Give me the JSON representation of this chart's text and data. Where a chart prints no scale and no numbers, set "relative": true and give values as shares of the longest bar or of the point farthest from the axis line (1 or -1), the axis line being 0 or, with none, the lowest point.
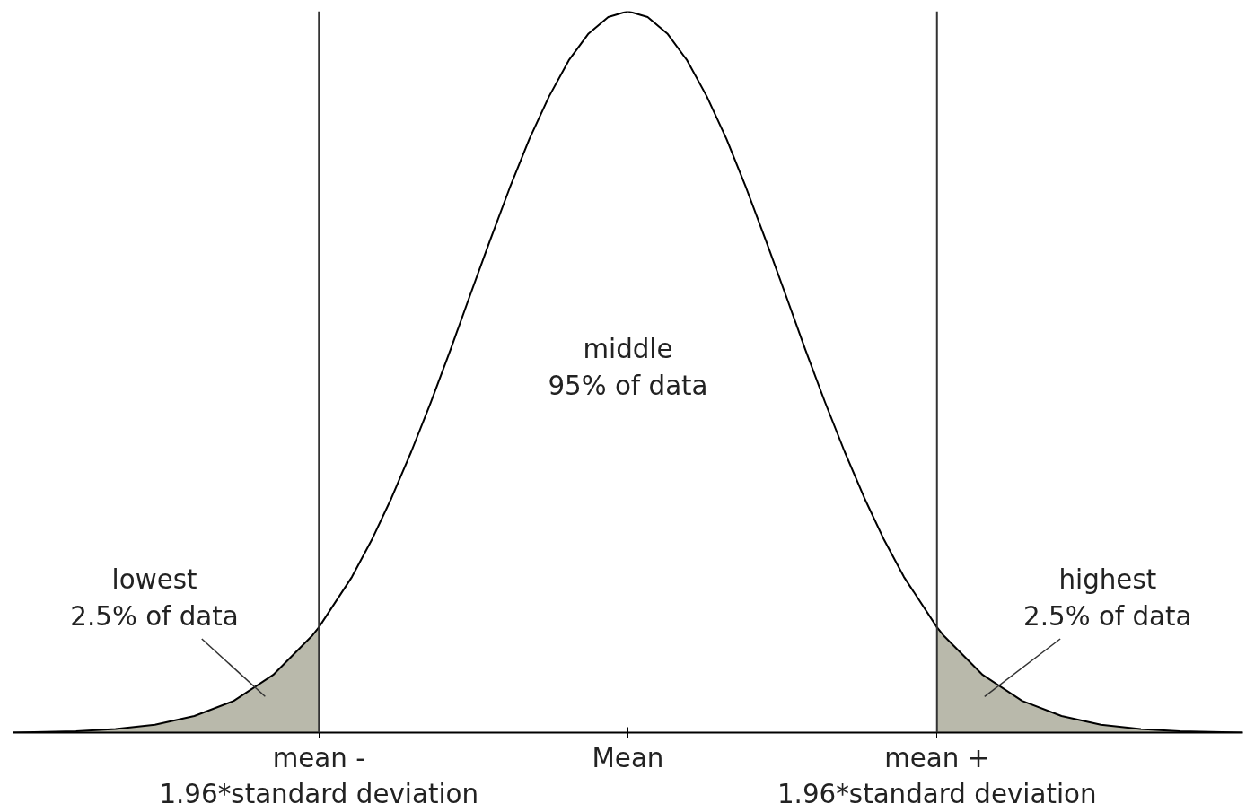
{
  "chart_data": {
    "type": "line",
    "relative": true,
    "grid": false,
    "tick_labels": "x",
    "xlim": [
      -3.9,
      3.9
    ],
    "xticks": [
      {
        "value": -1.96,
        "label": "mean -\n1.96*standard deviation"
      },
      {
        "value": 0,
        "label": "Mean"
      },
      {
        "value": 1.96,
        "label": "mean +\n1.96*standard deviation"
      }
    ],
    "series": [
      {
        "type": "area",
        "color": "#b9b9ab",
        "x": [
          -3.9,
          -3.5,
          -3.25,
          -3.0,
          -2.75,
          -2.5,
          -2.25,
          -2.0,
          -1.96
        ],
        "values": [
          0.0,
          0.002,
          0.005,
          0.011,
          0.023,
          0.044,
          0.08,
          0.135,
          0.146
        ]
      },
      {
        "type": "area",
        "color": "#b9b9ab",
        "x": [
          1.96,
          2.0,
          2.25,
          2.5,
          2.75,
          3.0,
          3.25,
          3.5,
          3.9
        ],
        "values": [
          0.146,
          0.135,
          0.08,
          0.044,
          0.023,
          0.011,
          0.005,
          0.002,
          0.0
        ]
      },
      {
        "color": "#000000",
        "x": [
          -3.9,
          -3.5,
          -3.25,
          -3.0,
          -2.75,
          -2.5,
          -2.25,
          -2.0,
          -1.96,
          -1.75,
          -1.625,
          -1.5,
          -1.375,
          -1.25,
          -1.125,
          -1.0,
          -0.875,
          -0.75,
          -0.625,
          -0.5,
          -0.375,
          -0.25,
          -0.125,
          0,
          0.125,
          0.25,
          0.375,
          0.5,
          0.625,
          0.75,
          0.875,
          1.0,
          1.125,
          1.25,
          1.375,
          1.5,
          1.625,
          1.75,
          1.96,
          2.0,
          2.25,
          2.5,
          2.75,
          3.0,
          3.25,
          3.5,
          3.9
        ],
        "values": [
          0.0,
          0.002,
          0.005,
          0.011,
          0.023,
          0.044,
          0.08,
          0.135,
          0.146,
          0.216,
          0.267,
          0.325,
          0.389,
          0.458,
          0.531,
          0.607,
          0.682,
          0.755,
          0.823,
          0.882,
          0.932,
          0.969,
          0.992,
          1.0,
          0.992,
          0.969,
          0.932,
          0.882,
          0.823,
          0.755,
          0.682,
          0.607,
          0.531,
          0.458,
          0.389,
          0.325,
          0.267,
          0.216,
          0.146,
          0.135,
          0.08,
          0.044,
          0.023,
          0.011,
          0.005,
          0.002,
          0.0
        ]
      }
    ],
    "ref_lines": [
      {
        "axis": "x",
        "value": -1.96,
        "color": "#333333"
      },
      {
        "axis": "x",
        "value": 1.96,
        "color": "#333333"
      }
    ],
    "annotations": [
      "middle\n95% of data",
      "lowest\n2.5% of data",
      "highest\n2.5% of data"
    ]
  }
}
